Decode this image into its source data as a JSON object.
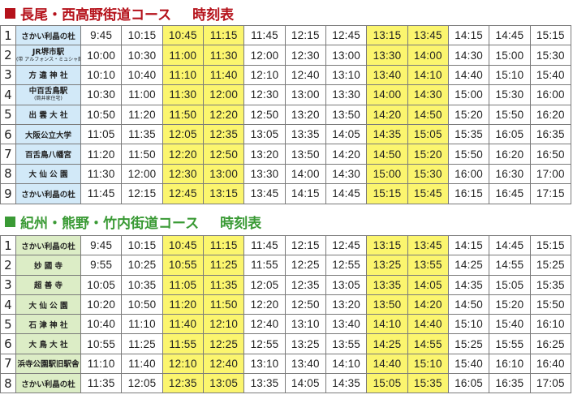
{
  "sections": [
    {
      "title_main": "長尾・西高野街道コース",
      "title_tag": "時刻表",
      "accent_color": "#b5121b",
      "stop_bg": "#d2e9f8",
      "highlight_columns": [
        2,
        3,
        7,
        8
      ],
      "rows": [
        {
          "num": "1",
          "stop": "さかい利晶の杜",
          "stop_sub": "",
          "times": [
            "9:45",
            "10:15",
            "10:45",
            "11:15",
            "11:45",
            "12:15",
            "12:45",
            "13:15",
            "13:45",
            "14:15",
            "14:45",
            "15:15"
          ]
        },
        {
          "num": "2",
          "stop": "JR堺市駅",
          "stop_sub": "(带 アルフォンス・ミュシャ館)",
          "times": [
            "10:00",
            "10:30",
            "11:00",
            "11:30",
            "12:00",
            "12:30",
            "13:00",
            "13:30",
            "14:00",
            "14:30",
            "15:00",
            "15:30"
          ]
        },
        {
          "num": "3",
          "stop": "方 違 神 社",
          "stop_sub": "",
          "times": [
            "10:10",
            "10:40",
            "11:10",
            "11:40",
            "12:10",
            "12:40",
            "13:10",
            "13:40",
            "14:10",
            "14:40",
            "15:10",
            "15:40"
          ]
        },
        {
          "num": "4",
          "stop": "中百舌鳥駅",
          "stop_sub": "(筒井家住宅)",
          "times": [
            "10:30",
            "11:00",
            "11:30",
            "12:00",
            "12:30",
            "13:00",
            "13:30",
            "14:00",
            "14:30",
            "15:00",
            "15:30",
            "16:00"
          ]
        },
        {
          "num": "5",
          "stop": "出 雲 大 社",
          "stop_sub": "",
          "times": [
            "10:50",
            "11:20",
            "11:50",
            "12:20",
            "12:50",
            "13:20",
            "13:50",
            "14:20",
            "14:50",
            "15:20",
            "15:50",
            "16:20"
          ]
        },
        {
          "num": "6",
          "stop": "大阪公立大学",
          "stop_sub": "",
          "times": [
            "11:05",
            "11:35",
            "12:05",
            "12:35",
            "13:05",
            "13:35",
            "14:05",
            "14:35",
            "15:05",
            "15:35",
            "16:05",
            "16:35"
          ]
        },
        {
          "num": "7",
          "stop": "百舌鳥八幡宮",
          "stop_sub": "",
          "times": [
            "11:20",
            "11:50",
            "12:20",
            "12:50",
            "13:20",
            "13:50",
            "14:20",
            "14:50",
            "15:20",
            "15:50",
            "16:20",
            "16:50"
          ]
        },
        {
          "num": "8",
          "stop": "大 仙 公 園",
          "stop_sub": "",
          "times": [
            "11:30",
            "12:00",
            "12:30",
            "13:00",
            "13:30",
            "14:00",
            "14:30",
            "15:00",
            "15:30",
            "16:00",
            "16:30",
            "17:00"
          ]
        },
        {
          "num": "9",
          "stop": "さかい利晶の杜",
          "stop_sub": "",
          "times": [
            "11:45",
            "12:15",
            "12:45",
            "13:15",
            "13:45",
            "14:15",
            "14:45",
            "15:15",
            "15:45",
            "16:15",
            "16:45",
            "17:15"
          ]
        }
      ]
    },
    {
      "title_main": "紀州・熊野・竹内街道コース",
      "title_tag": "時刻表",
      "accent_color": "#3a9a35",
      "stop_bg": "#dcedc6",
      "highlight_columns": [
        2,
        3,
        7,
        8
      ],
      "rows": [
        {
          "num": "1",
          "stop": "さかい利晶の杜",
          "stop_sub": "",
          "times": [
            "9:45",
            "10:15",
            "10:45",
            "11:15",
            "11:45",
            "12:15",
            "12:45",
            "13:15",
            "13:45",
            "14:15",
            "14:45",
            "15:15"
          ]
        },
        {
          "num": "2",
          "stop": "妙 國 寺",
          "stop_sub": "",
          "times": [
            "9:55",
            "10:25",
            "10:55",
            "11:25",
            "11:55",
            "12:25",
            "12:55",
            "13:25",
            "13:55",
            "14:25",
            "14:55",
            "15:25"
          ]
        },
        {
          "num": "3",
          "stop": "超 善 寺",
          "stop_sub": "",
          "times": [
            "10:05",
            "10:35",
            "11:05",
            "11:35",
            "12:05",
            "12:35",
            "13:05",
            "13:35",
            "14:05",
            "14:35",
            "15:05",
            "15:35"
          ]
        },
        {
          "num": "4",
          "stop": "大 仙 公 園",
          "stop_sub": "",
          "times": [
            "10:20",
            "10:50",
            "11:20",
            "11:50",
            "12:20",
            "12:50",
            "13:20",
            "13:50",
            "14:20",
            "14:50",
            "15:20",
            "15:50"
          ]
        },
        {
          "num": "5",
          "stop": "石 津 神 社",
          "stop_sub": "",
          "times": [
            "10:40",
            "11:10",
            "11:40",
            "12:10",
            "12:40",
            "13:10",
            "13:40",
            "14:10",
            "14:40",
            "15:10",
            "15:40",
            "16:10"
          ]
        },
        {
          "num": "6",
          "stop": "大 鳥 大 社",
          "stop_sub": "",
          "times": [
            "10:55",
            "11:25",
            "11:55",
            "12:25",
            "12:55",
            "13:25",
            "13:55",
            "14:25",
            "14:55",
            "15:25",
            "15:55",
            "16:25"
          ]
        },
        {
          "num": "7",
          "stop": "浜寺公園駅旧駅舎",
          "stop_sub": "",
          "times": [
            "11:10",
            "11:40",
            "12:10",
            "12:40",
            "13:10",
            "13:40",
            "14:10",
            "14:40",
            "15:10",
            "15:40",
            "16:10",
            "16:40"
          ]
        },
        {
          "num": "8",
          "stop": "さかい利晶の杜",
          "stop_sub": "",
          "times": [
            "11:35",
            "12:05",
            "12:35",
            "13:05",
            "13:35",
            "14:05",
            "14:35",
            "15:05",
            "15:35",
            "16:05",
            "16:35",
            "17:05"
          ]
        }
      ]
    }
  ]
}
